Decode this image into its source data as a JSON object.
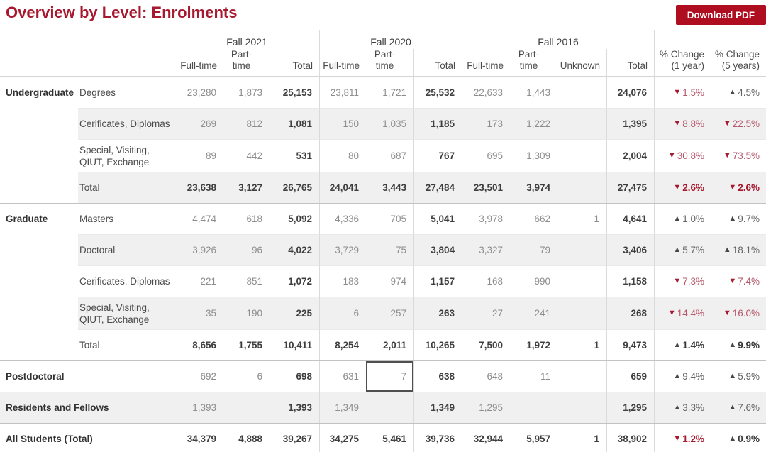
{
  "header": {
    "title": "Overview by Level: Enrolments",
    "download_button": "Download PDF"
  },
  "colors": {
    "title_red": "#A6192E",
    "button_red": "#AE0E20",
    "down_red": "#A6192E",
    "down_soft": "#B6586B",
    "up_dark": "#474747",
    "up_soft": "#646464",
    "shade": "#F0F0F0",
    "grid_line": "#DADADA",
    "row_line": "#E9E9E9",
    "section_line": "#C3C3C3",
    "num_gray": "#8D8D8D",
    "num_dark": "#3E3E3E",
    "selected_border": "#4F4F4F"
  },
  "table": {
    "year_labels": [
      "Fall 2021",
      "Fall 2020",
      "Fall 2016"
    ],
    "sub_labels": [
      "Full-time",
      "Part-time",
      "Total",
      "Full-time",
      "Part-time",
      "Total",
      "Full-time",
      "Part-time",
      "Unknown",
      "Total"
    ],
    "change_labels": [
      "% Change (1 year)",
      "% Change (5 years)"
    ],
    "selected_cell": {
      "row": 9,
      "col": 4
    },
    "rows": [
      {
        "category": "Undergraduate",
        "level": "Degrees",
        "single": false,
        "shaded": false,
        "bold": false,
        "section_start": false,
        "tall": false,
        "values": [
          "23,280",
          "1,873",
          "25,153",
          "23,811",
          "1,721",
          "25,532",
          "22,633",
          "1,443",
          "",
          "24,076"
        ],
        "changes": [
          {
            "dir": "down",
            "pct": "1.5%"
          },
          {
            "dir": "up",
            "pct": "4.5%"
          }
        ]
      },
      {
        "category": "",
        "level": "Cerificates, Diplomas",
        "single": false,
        "shaded": true,
        "bold": false,
        "section_start": false,
        "tall": false,
        "values": [
          "269",
          "812",
          "1,081",
          "150",
          "1,035",
          "1,185",
          "173",
          "1,222",
          "",
          "1,395"
        ],
        "changes": [
          {
            "dir": "down",
            "pct": "8.8%"
          },
          {
            "dir": "down",
            "pct": "22.5%"
          }
        ]
      },
      {
        "category": "",
        "level": "Special, Visiting, QIUT, Exchange",
        "single": false,
        "shaded": false,
        "bold": false,
        "section_start": false,
        "tall": true,
        "values": [
          "89",
          "442",
          "531",
          "80",
          "687",
          "767",
          "695",
          "1,309",
          "",
          "2,004"
        ],
        "changes": [
          {
            "dir": "down",
            "pct": "30.8%"
          },
          {
            "dir": "down",
            "pct": "73.5%"
          }
        ]
      },
      {
        "category": "",
        "level": "Total",
        "single": false,
        "shaded": true,
        "bold": true,
        "section_start": false,
        "tall": false,
        "values": [
          "23,638",
          "3,127",
          "26,765",
          "24,041",
          "3,443",
          "27,484",
          "23,501",
          "3,974",
          "",
          "27,475"
        ],
        "changes": [
          {
            "dir": "down",
            "pct": "2.6%"
          },
          {
            "dir": "down",
            "pct": "2.6%"
          }
        ]
      },
      {
        "category": "Graduate",
        "level": "Masters",
        "single": false,
        "shaded": false,
        "bold": false,
        "section_start": true,
        "tall": false,
        "values": [
          "4,474",
          "618",
          "5,092",
          "4,336",
          "705",
          "5,041",
          "3,978",
          "662",
          "1",
          "4,641"
        ],
        "changes": [
          {
            "dir": "up",
            "pct": "1.0%"
          },
          {
            "dir": "up",
            "pct": "9.7%"
          }
        ]
      },
      {
        "category": "",
        "level": "Doctoral",
        "single": false,
        "shaded": true,
        "bold": false,
        "section_start": false,
        "tall": false,
        "values": [
          "3,926",
          "96",
          "4,022",
          "3,729",
          "75",
          "3,804",
          "3,327",
          "79",
          "",
          "3,406"
        ],
        "changes": [
          {
            "dir": "up",
            "pct": "5.7%"
          },
          {
            "dir": "up",
            "pct": "18.1%"
          }
        ]
      },
      {
        "category": "",
        "level": "Cerificates, Diplomas",
        "single": false,
        "shaded": false,
        "bold": false,
        "section_start": false,
        "tall": false,
        "values": [
          "221",
          "851",
          "1,072",
          "183",
          "974",
          "1,157",
          "168",
          "990",
          "",
          "1,158"
        ],
        "changes": [
          {
            "dir": "down",
            "pct": "7.3%"
          },
          {
            "dir": "down",
            "pct": "7.4%"
          }
        ]
      },
      {
        "category": "",
        "level": "Special, Visiting, QIUT, Exchange",
        "single": false,
        "shaded": true,
        "bold": false,
        "section_start": false,
        "tall": true,
        "values": [
          "35",
          "190",
          "225",
          "6",
          "257",
          "263",
          "27",
          "241",
          "",
          "268"
        ],
        "changes": [
          {
            "dir": "down",
            "pct": "14.4%"
          },
          {
            "dir": "down",
            "pct": "16.0%"
          }
        ]
      },
      {
        "category": "",
        "level": "Total",
        "single": false,
        "shaded": false,
        "bold": true,
        "section_start": false,
        "tall": false,
        "values": [
          "8,656",
          "1,755",
          "10,411",
          "8,254",
          "2,011",
          "10,265",
          "7,500",
          "1,972",
          "1",
          "9,473"
        ],
        "changes": [
          {
            "dir": "up",
            "pct": "1.4%"
          },
          {
            "dir": "up",
            "pct": "9.9%"
          }
        ]
      },
      {
        "category": "Postdoctoral",
        "level": "",
        "single": true,
        "shaded": false,
        "bold": false,
        "section_start": true,
        "tall": false,
        "values": [
          "692",
          "6",
          "698",
          "631",
          "7",
          "638",
          "648",
          "11",
          "",
          "659"
        ],
        "changes": [
          {
            "dir": "up",
            "pct": "9.4%"
          },
          {
            "dir": "up",
            "pct": "5.9%"
          }
        ]
      },
      {
        "category": "Residents and Fellows",
        "level": "",
        "single": true,
        "shaded": true,
        "bold": false,
        "section_start": true,
        "tall": false,
        "values": [
          "1,393",
          "",
          "1,393",
          "1,349",
          "",
          "1,349",
          "1,295",
          "",
          "",
          "1,295"
        ],
        "changes": [
          {
            "dir": "up",
            "pct": "3.3%"
          },
          {
            "dir": "up",
            "pct": "7.6%"
          }
        ]
      },
      {
        "category": "All Students (Total)",
        "level": "",
        "single": true,
        "shaded": false,
        "bold": true,
        "section_start": true,
        "tall": false,
        "values": [
          "34,379",
          "4,888",
          "39,267",
          "34,275",
          "5,461",
          "39,736",
          "32,944",
          "5,957",
          "1",
          "38,902"
        ],
        "changes": [
          {
            "dir": "down",
            "pct": "1.2%"
          },
          {
            "dir": "up",
            "pct": "0.9%"
          }
        ]
      }
    ]
  }
}
